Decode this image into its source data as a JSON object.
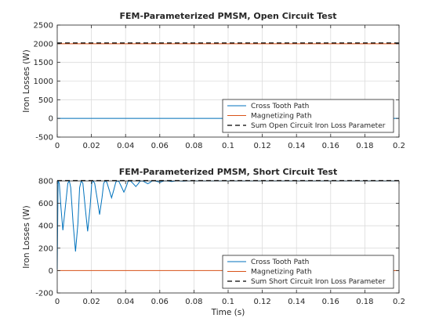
{
  "chart_data": [
    {
      "type": "line",
      "title": "FEM-Parameterized PMSM, Open Circuit Test",
      "xlabel": "",
      "ylabel": "Iron Losses (W)",
      "xlim": [
        0,
        0.2
      ],
      "ylim": [
        -500,
        2500
      ],
      "xticks": [
        0,
        0.02,
        0.04,
        0.06,
        0.08,
        0.1,
        0.12,
        0.14,
        0.16,
        0.18,
        0.2
      ],
      "yticks": [
        -500,
        0,
        500,
        1000,
        1500,
        2000,
        2500
      ],
      "grid": true,
      "legend_position": "bottom-right",
      "series": [
        {
          "name": "Cross Tooth Path",
          "color": "#0072BD",
          "style": "solid",
          "x": [
            0,
            0.2
          ],
          "y": [
            0,
            0
          ]
        },
        {
          "name": "Magnetizing Path",
          "color": "#D95319",
          "style": "solid",
          "x": [
            0,
            0.2
          ],
          "y": [
            2000,
            2000
          ]
        },
        {
          "name": "Sum Open Circuit Iron Loss Parameter",
          "color": "#000000",
          "style": "dashed",
          "x": [
            0,
            0.2
          ],
          "y": [
            2020,
            2020
          ]
        }
      ]
    },
    {
      "type": "line",
      "title": "FEM-Parameterized PMSM, Short Circuit Test",
      "xlabel": "Time (s)",
      "ylabel": "Iron Losses (W)",
      "xlim": [
        0,
        0.2
      ],
      "ylim": [
        -200,
        800
      ],
      "xticks": [
        0,
        0.02,
        0.04,
        0.06,
        0.08,
        0.1,
        0.12,
        0.14,
        0.16,
        0.18,
        0.2
      ],
      "yticks": [
        -200,
        0,
        200,
        400,
        600,
        800
      ],
      "grid": true,
      "legend_position": "bottom-right",
      "series": [
        {
          "name": "Cross Tooth Path",
          "color": "#0072BD",
          "style": "solid",
          "x": [
            0,
            0.0005,
            0.0012,
            0.0022,
            0.0033,
            0.0047,
            0.0062,
            0.0071,
            0.0079,
            0.0093,
            0.0107,
            0.0121,
            0.0131,
            0.014,
            0.015,
            0.0164,
            0.0178,
            0.0192,
            0.0202,
            0.021,
            0.0219,
            0.0233,
            0.0248,
            0.0262,
            0.0272,
            0.0281,
            0.029,
            0.0304,
            0.0318,
            0.0331,
            0.0343,
            0.0352,
            0.0361,
            0.0375,
            0.039,
            0.0404,
            0.0414,
            0.0422,
            0.0431,
            0.0445,
            0.046,
            0.0474,
            0.0484,
            0.0493,
            0.0502,
            0.0516,
            0.053,
            0.0544,
            0.0554,
            0.0563,
            0.0572,
            0.0586,
            0.06,
            0.0614,
            0.0624,
            0.0632,
            0.0641,
            0.0655,
            0.067,
            0.0684,
            0.0694,
            0.0702,
            0.0711,
            0.0725,
            0.074,
            0.076,
            0.08,
            0.2
          ],
          "y": [
            10,
            800,
            780,
            560,
            360,
            560,
            780,
            800,
            740,
            420,
            170,
            420,
            740,
            800,
            780,
            560,
            350,
            560,
            780,
            800,
            780,
            650,
            500,
            650,
            780,
            800,
            790,
            720,
            650,
            720,
            790,
            800,
            795,
            750,
            700,
            750,
            795,
            800,
            797,
            775,
            750,
            775,
            797,
            800,
            799,
            787,
            775,
            787,
            799,
            800,
            800,
            795,
            789,
            795,
            800,
            800,
            800,
            798,
            795,
            798,
            800,
            800,
            800,
            799,
            798,
            800,
            800,
            800
          ]
        },
        {
          "name": "Magnetizing Path",
          "color": "#D95319",
          "style": "solid",
          "x": [
            0,
            0.2
          ],
          "y": [
            0,
            0
          ]
        },
        {
          "name": "Sum Short Circuit Iron Loss Parameter",
          "color": "#000000",
          "style": "dashed",
          "x": [
            0,
            0.2
          ],
          "y": [
            803,
            803
          ]
        }
      ]
    }
  ]
}
